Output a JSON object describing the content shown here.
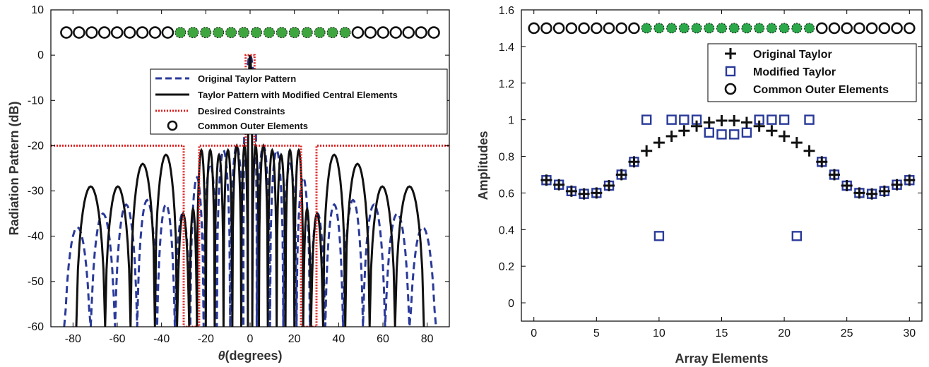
{
  "chart_data": [
    {
      "type": "line",
      "xlabel_symbol": "θ",
      "xlabel_rest": "(degrees)",
      "ylabel": "Radiation Pattern (dB)",
      "xlim": [
        -90,
        90
      ],
      "ylim": [
        -60,
        10
      ],
      "xticks": [
        -80,
        -60,
        -40,
        -20,
        0,
        20,
        40,
        60,
        80
      ],
      "yticks": [
        10,
        0,
        -10,
        -20,
        -30,
        -40,
        -50,
        -60
      ],
      "legend_position": "center",
      "series": [
        {
          "name": "Original Taylor Pattern",
          "style": "dashed",
          "color": "#2a3a9a",
          "lobe_peaks": [
            [
              -78,
              -38
            ],
            [
              -66,
              -35
            ],
            [
              -56,
              -33
            ],
            [
              -46,
              -32
            ],
            [
              -38,
              -33
            ],
            [
              -30,
              -35
            ],
            [
              -24,
              -27
            ],
            [
              -18,
              -24
            ],
            [
              -12,
              -21
            ],
            [
              -6,
              -20
            ],
            [
              0,
              0
            ],
            [
              6,
              -20
            ],
            [
              12,
              -21
            ],
            [
              18,
              -24
            ],
            [
              24,
              -27
            ],
            [
              30,
              -35
            ],
            [
              38,
              -33
            ],
            [
              46,
              -32
            ],
            [
              56,
              -33
            ],
            [
              66,
              -35
            ],
            [
              78,
              -38
            ]
          ]
        },
        {
          "name": "Taylor Pattern with Modified Central Elements",
          "style": "solid",
          "color": "#111111",
          "lobe_peaks": [
            [
              -72,
              -29
            ],
            [
              -59,
              -29
            ],
            [
              -49,
              -24
            ],
            [
              -37,
              -22
            ],
            [
              -29,
              -35
            ],
            [
              -26,
              -34
            ],
            [
              -22,
              -21
            ],
            [
              -18,
              -21
            ],
            [
              -14,
              -22
            ],
            [
              -10,
              -21
            ],
            [
              -6,
              -20
            ],
            [
              -2,
              -20
            ],
            [
              0,
              0
            ],
            [
              2,
              -20
            ],
            [
              6,
              -20
            ],
            [
              10,
              -21
            ],
            [
              14,
              -22
            ],
            [
              18,
              -21
            ],
            [
              22,
              -21
            ],
            [
              26,
              -34
            ],
            [
              29,
              -35
            ],
            [
              37,
              -22
            ],
            [
              49,
              -24
            ],
            [
              59,
              -29
            ],
            [
              72,
              -29
            ]
          ]
        },
        {
          "name": "Desired Constraints",
          "style": "dotted",
          "color": "#e02020",
          "points": [
            [
              -90,
              -20
            ],
            [
              -30,
              -20
            ],
            [
              -30,
              -60
            ],
            [
              -23,
              -60
            ],
            [
              -23,
              -20
            ],
            [
              -2,
              -20
            ],
            [
              -2,
              0
            ],
            [
              2,
              0
            ],
            [
              2,
              -20
            ],
            [
              23,
              -20
            ],
            [
              23,
              -60
            ],
            [
              30,
              -60
            ],
            [
              30,
              -20
            ],
            [
              90,
              -20
            ]
          ]
        },
        {
          "name": "Common Outer Elements",
          "style": "marker-circle",
          "color": "#111111"
        }
      ],
      "element_markers": {
        "y": 5,
        "x_start": -83,
        "x_end": 83,
        "count": 30,
        "filled_from": 9,
        "filled_to": 22,
        "fill_color": "#3fa63f"
      }
    },
    {
      "type": "scatter",
      "xlabel": "Array Elements",
      "ylabel": "Amplitudes",
      "xlim": [
        -1,
        31
      ],
      "ylim": [
        -0.1,
        1.6
      ],
      "xticks": [
        0,
        5,
        10,
        15,
        20,
        25,
        30
      ],
      "yticks": [
        0,
        0.2,
        0.4,
        0.6,
        0.8,
        1,
        1.2,
        1.4,
        1.6
      ],
      "legend_position": "top-right",
      "series": [
        {
          "name": "Original Taylor",
          "marker": "plus",
          "color": "#111111",
          "x": [
            1,
            2,
            3,
            4,
            5,
            6,
            7,
            8,
            9,
            10,
            11,
            12,
            13,
            14,
            15,
            16,
            17,
            18,
            19,
            20,
            21,
            22,
            23,
            24,
            25,
            26,
            27,
            28,
            29,
            30
          ],
          "y": [
            0.67,
            0.645,
            0.61,
            0.595,
            0.6,
            0.64,
            0.7,
            0.77,
            0.83,
            0.875,
            0.91,
            0.94,
            0.965,
            0.985,
            0.995,
            0.995,
            0.985,
            0.965,
            0.94,
            0.91,
            0.875,
            0.83,
            0.77,
            0.7,
            0.64,
            0.6,
            0.595,
            0.61,
            0.645,
            0.67
          ]
        },
        {
          "name": "Modified Taylor",
          "marker": "square",
          "color": "#2a3a9a",
          "x": [
            1,
            2,
            3,
            4,
            5,
            6,
            7,
            8,
            9,
            10,
            11,
            12,
            13,
            14,
            15,
            16,
            17,
            18,
            19,
            20,
            21,
            22,
            23,
            24,
            25,
            26,
            27,
            28,
            29,
            30
          ],
          "y": [
            0.67,
            0.645,
            0.61,
            0.595,
            0.6,
            0.64,
            0.7,
            0.77,
            1.0,
            0.365,
            1.0,
            1.0,
            1.0,
            0.93,
            0.92,
            0.92,
            0.93,
            1.0,
            1.0,
            1.0,
            0.365,
            1.0,
            0.77,
            0.7,
            0.64,
            0.6,
            0.595,
            0.61,
            0.645,
            0.67
          ]
        },
        {
          "name": "Common Outer Elements",
          "marker": "circle",
          "color": "#111111"
        }
      ],
      "element_markers": {
        "y": 1.5,
        "x_start": 0,
        "x_end": 30,
        "count": 31,
        "filled_from": 9,
        "filled_to": 22,
        "fill_color": "#2aa84a"
      }
    }
  ]
}
